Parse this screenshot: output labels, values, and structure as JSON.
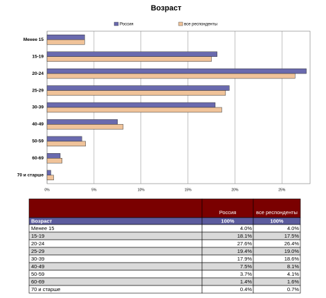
{
  "chart_data": {
    "type": "hbar",
    "title": "Возраст",
    "categories": [
      "Менее 15",
      "15-19",
      "20-24",
      "25-29",
      "30-39",
      "40-49",
      "50-59",
      "60-69",
      "70 и старше"
    ],
    "series": [
      {
        "name": "Россия",
        "color": "#6a6aae",
        "values": [
          4.0,
          18.1,
          27.6,
          19.4,
          17.9,
          7.5,
          3.7,
          1.4,
          0.4
        ]
      },
      {
        "name": "все респонденты",
        "color": "#f0c39a",
        "values": [
          4.0,
          17.5,
          26.4,
          19.0,
          18.6,
          8.1,
          4.1,
          1.6,
          0.7
        ]
      }
    ],
    "xlim": [
      0,
      28
    ],
    "xticks": [
      {
        "value": 0,
        "label": "0%"
      },
      {
        "value": 5,
        "label": "5%"
      },
      {
        "value": 10,
        "label": "10%"
      },
      {
        "value": 15,
        "label": "15%"
      },
      {
        "value": 20,
        "label": "20%"
      },
      {
        "value": 25,
        "label": "25%"
      }
    ],
    "grid": true,
    "legend": "top"
  },
  "table": {
    "header": [
      "",
      "Россия",
      "все респонденты"
    ],
    "subheader": [
      "Возраст",
      "100%",
      "100%"
    ],
    "rows": [
      [
        "Менее 15",
        "4.0%",
        "4.0%"
      ],
      [
        "15-19",
        "18.1%",
        "17.5%"
      ],
      [
        "20-24",
        "27.6%",
        "26.4%"
      ],
      [
        "25-29",
        "19.4%",
        "19.0%"
      ],
      [
        "30-39",
        "17.9%",
        "18.6%"
      ],
      [
        "40-49",
        "7.5%",
        "8.1%"
      ],
      [
        "50-59",
        "3.7%",
        "4.1%"
      ],
      [
        "60-69",
        "1.4%",
        "1.6%"
      ],
      [
        "70 и старше",
        "0.4%",
        "0.7%"
      ]
    ]
  }
}
